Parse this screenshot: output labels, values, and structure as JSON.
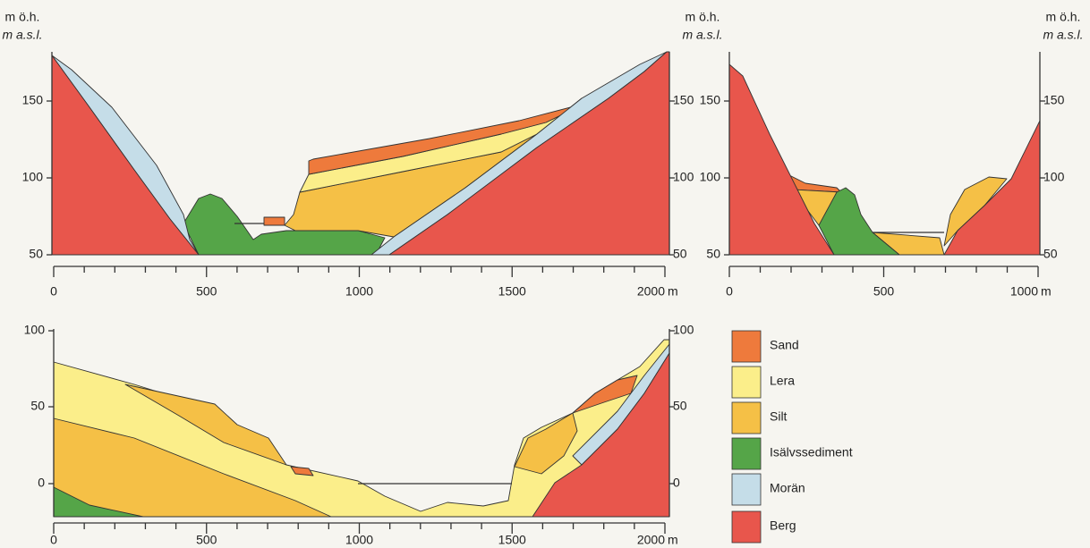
{
  "header_labels": [
    {
      "line1": "m ö.h.",
      "line2": "m a.s.l."
    },
    {
      "line1": "m ö.h.",
      "line2": "m a.s.l."
    },
    {
      "line1": "m ö.h.",
      "line2": "m a.s.l."
    }
  ],
  "sections": [
    {
      "left_ticks": [
        150,
        100,
        50
      ],
      "right_ticks": [
        150,
        100,
        50
      ],
      "x_ticks": [
        0,
        500,
        1000,
        1500,
        2000
      ],
      "x_unit": "m"
    },
    {
      "left_ticks": [
        150,
        100,
        50
      ],
      "right_ticks": [
        150,
        100,
        50
      ],
      "x_ticks": [
        0,
        500,
        1000
      ],
      "x_unit": "m"
    },
    {
      "left_ticks": [
        100,
        50,
        0
      ],
      "right_ticks": [
        100,
        50,
        0
      ],
      "x_ticks": [
        0,
        500,
        1000,
        1500,
        2000
      ],
      "x_unit": "m"
    }
  ],
  "legend": [
    "Sand",
    "Lera",
    "Silt",
    "Isälvssediment",
    "Morän",
    "Berg"
  ]
}
